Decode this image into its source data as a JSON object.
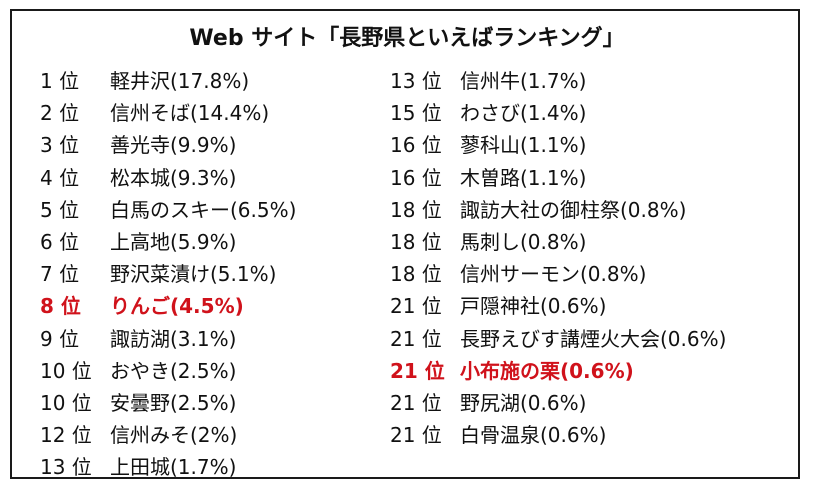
{
  "title": "Web サイト「長野県といえばランキング」",
  "colors": {
    "text": "#111111",
    "highlight": "#d0121b",
    "border": "#1a1a1a"
  },
  "left_column": [
    {
      "rank": "1 位",
      "item": "軽井沢(17.8%)",
      "highlight": false
    },
    {
      "rank": "2 位",
      "item": "信州そば(14.4%)",
      "highlight": false
    },
    {
      "rank": "3 位",
      "item": "善光寺(9.9%)",
      "highlight": false
    },
    {
      "rank": "4 位",
      "item": "松本城(9.3%)",
      "highlight": false
    },
    {
      "rank": "5 位",
      "item": "白馬のスキー(6.5%)",
      "highlight": false
    },
    {
      "rank": "6 位",
      "item": "上高地(5.9%)",
      "highlight": false
    },
    {
      "rank": "7 位",
      "item": "野沢菜漬け(5.1%)",
      "highlight": false
    },
    {
      "rank": "8 位",
      "item": "りんご(4.5%)",
      "highlight": true
    },
    {
      "rank": "9 位",
      "item": "諏訪湖(3.1%)",
      "highlight": false
    },
    {
      "rank": "10 位",
      "item": "おやき(2.5%)",
      "highlight": false
    },
    {
      "rank": "10 位",
      "item": "安曇野(2.5%)",
      "highlight": false
    },
    {
      "rank": "12 位",
      "item": "信州みそ(2%)",
      "highlight": false
    },
    {
      "rank": "13 位",
      "item": "上田城(1.7%)",
      "highlight": false
    }
  ],
  "right_column": [
    {
      "rank": "13 位",
      "item": "信州牛(1.7%)",
      "highlight": false
    },
    {
      "rank": "15 位",
      "item": "わさび(1.4%)",
      "highlight": false
    },
    {
      "rank": "16 位",
      "item": "蓼科山(1.1%)",
      "highlight": false
    },
    {
      "rank": "16 位",
      "item": "木曽路(1.1%)",
      "highlight": false
    },
    {
      "rank": "18 位",
      "item": "諏訪大社の御柱祭(0.8%)",
      "highlight": false
    },
    {
      "rank": "18 位",
      "item": "馬刺し(0.8%)",
      "highlight": false
    },
    {
      "rank": "18 位",
      "item": "信州サーモン(0.8%)",
      "highlight": false
    },
    {
      "rank": "21 位",
      "item": "戸隠神社(0.6%)",
      "highlight": false
    },
    {
      "rank": "21 位",
      "item": "長野えびす講煙火大会(0.6%)",
      "highlight": false
    },
    {
      "rank": "21 位",
      "item": "小布施の栗(0.6%)",
      "highlight": true
    },
    {
      "rank": "21 位",
      "item": "野尻湖(0.6%)",
      "highlight": false
    },
    {
      "rank": "21 位",
      "item": "白骨温泉(0.6%)",
      "highlight": false
    }
  ]
}
